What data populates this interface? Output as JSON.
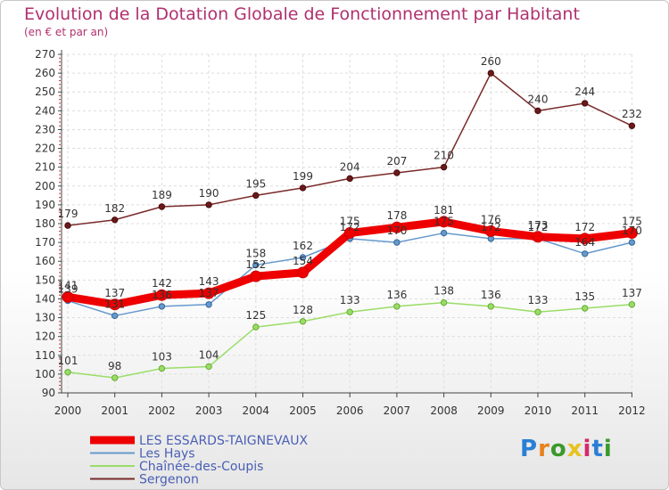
{
  "title": "Evolution de la Dotation Globale de Fonctionnement par Habitant",
  "subtitle": "(en € et par an)",
  "logo": {
    "letters": [
      "P",
      "r",
      "o",
      "x",
      "i",
      "t",
      "i"
    ],
    "colors": [
      "#2a7fd4",
      "#e8821e",
      "#3a9a2a",
      "#e8c21e",
      "#d42a6a",
      "#2a7fd4",
      "#3a9a2a"
    ]
  },
  "chart_data": {
    "type": "line",
    "title": "Evolution de la Dotation Globale de Fonctionnement par Habitant",
    "ylabel": "(en € et par an)",
    "xlabel": "",
    "ylim": [
      90,
      270
    ],
    "yticks": [
      90,
      100,
      110,
      120,
      130,
      140,
      150,
      160,
      170,
      180,
      190,
      200,
      210,
      220,
      230,
      240,
      250,
      260,
      270
    ],
    "categories": [
      "2000",
      "2001",
      "2002",
      "2003",
      "2004",
      "2005",
      "2006",
      "2007",
      "2008",
      "2009",
      "2010",
      "2011",
      "2012"
    ],
    "grid": true,
    "legend_position": "bottom-left",
    "series": [
      {
        "name": "LES ESSARDS-TAIGNEVAUX",
        "color": "#ee0000",
        "values": [
          141,
          137,
          142,
          143,
          152,
          154,
          175,
          178,
          181,
          176,
          173,
          172,
          175
        ]
      },
      {
        "name": "Les Hays",
        "color": "#6699cc",
        "values": [
          139,
          131,
          136,
          137,
          158,
          162,
          172,
          170,
          175,
          172,
          172,
          164,
          170
        ]
      },
      {
        "name": "Chaînée-des-Coupis",
        "color": "#99dd66",
        "values": [
          101,
          98,
          103,
          104,
          125,
          128,
          133,
          136,
          138,
          136,
          133,
          135,
          137
        ]
      },
      {
        "name": "Sergenon",
        "color": "#7a2a2a",
        "values": [
          179,
          182,
          189,
          190,
          195,
          199,
          204,
          207,
          210,
          260,
          240,
          244,
          232
        ]
      }
    ]
  }
}
